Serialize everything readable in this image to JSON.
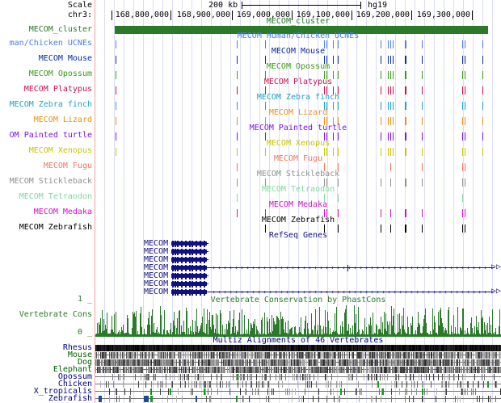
{
  "ruler": {
    "scale_label": "Scale",
    "scale_value": "200 kb",
    "assembly": "hg19",
    "chrom_label": "chr3:",
    "positions": [
      "168,800,000",
      "168,900,000",
      "169,000,000",
      "169,100,000",
      "169,200,000",
      "169,300,000"
    ]
  },
  "cluster_track": {
    "label": "MECOM_cluster",
    "title": "MECOM_cluster",
    "color": "#2a7a2a"
  },
  "ucne_tracks": [
    {
      "label": "man/Chicken UCNEs",
      "title": "MECOM Human/Chicken UCNEs",
      "color": "#4a7cf0"
    },
    {
      "label": "MECOM Mouse",
      "title": "MECOM Mouse",
      "color": "#0a2aa8"
    },
    {
      "label": "MECOM Opossum",
      "title": "MECOM Opossum",
      "color": "#3a9a18"
    },
    {
      "label": "MECOM Platypus",
      "title": "MECOM Platypus",
      "color": "#c81050"
    },
    {
      "label": "MECOM Zebra finch",
      "title": "MECOM Zebra finch",
      "color": "#20a0c8"
    },
    {
      "label": "MECOM Lizard",
      "title": "MECOM Lizard",
      "color": "#e89018"
    },
    {
      "label": "OM Painted turtle",
      "title": "MECOM Painted turtle",
      "color": "#8010e8"
    },
    {
      "label": "MECOM Xenopus",
      "title": "MECOM Xenopus",
      "color": "#c8c400"
    },
    {
      "label": "MECOM Fugu",
      "title": "MECOM Fugu",
      "color": "#f07860"
    },
    {
      "label": "MECOM Stickleback",
      "title": "MECOM Stickleback",
      "color": "#909090"
    },
    {
      "label": "MECOM Tetraodon",
      "title": "MECOM Tetraodon",
      "color": "#80d8a0"
    },
    {
      "label": "MECOM Medaka",
      "title": "MECOM Medaka",
      "color": "#d010c8"
    },
    {
      "label": "MECOM Zebrafish",
      "title": "MECOM Zebrafish",
      "color": "#000000"
    }
  ],
  "refseq": {
    "title": "RefSeq Genes",
    "color": "#101080",
    "genes": [
      "MECOM",
      "MECOM",
      "MECOM",
      "MECOM",
      "MECOM",
      "MECOM",
      "MECOM"
    ]
  },
  "conservation": {
    "title": "Vertebrate Conservation by PhastCons",
    "label": "Vertebrate Cons",
    "max_label": "1 _",
    "min_label": "0 _",
    "color": "#2a7a2a"
  },
  "multiz": {
    "title": "Multiz Alignments of 46 Vertebrates",
    "species": [
      {
        "name": "Rhesus",
        "color": "#000080"
      },
      {
        "name": "Mouse",
        "color": "#006000"
      },
      {
        "name": "Dog",
        "color": "#006000"
      },
      {
        "name": "Elephant",
        "color": "#006000"
      },
      {
        "name": "Opossum",
        "color": "#000080"
      },
      {
        "name": "Chicken",
        "color": "#000080"
      },
      {
        "name": "X_tropicalis",
        "color": "#000080"
      },
      {
        "name": "Zebrafish",
        "color": "#000080"
      }
    ]
  }
}
